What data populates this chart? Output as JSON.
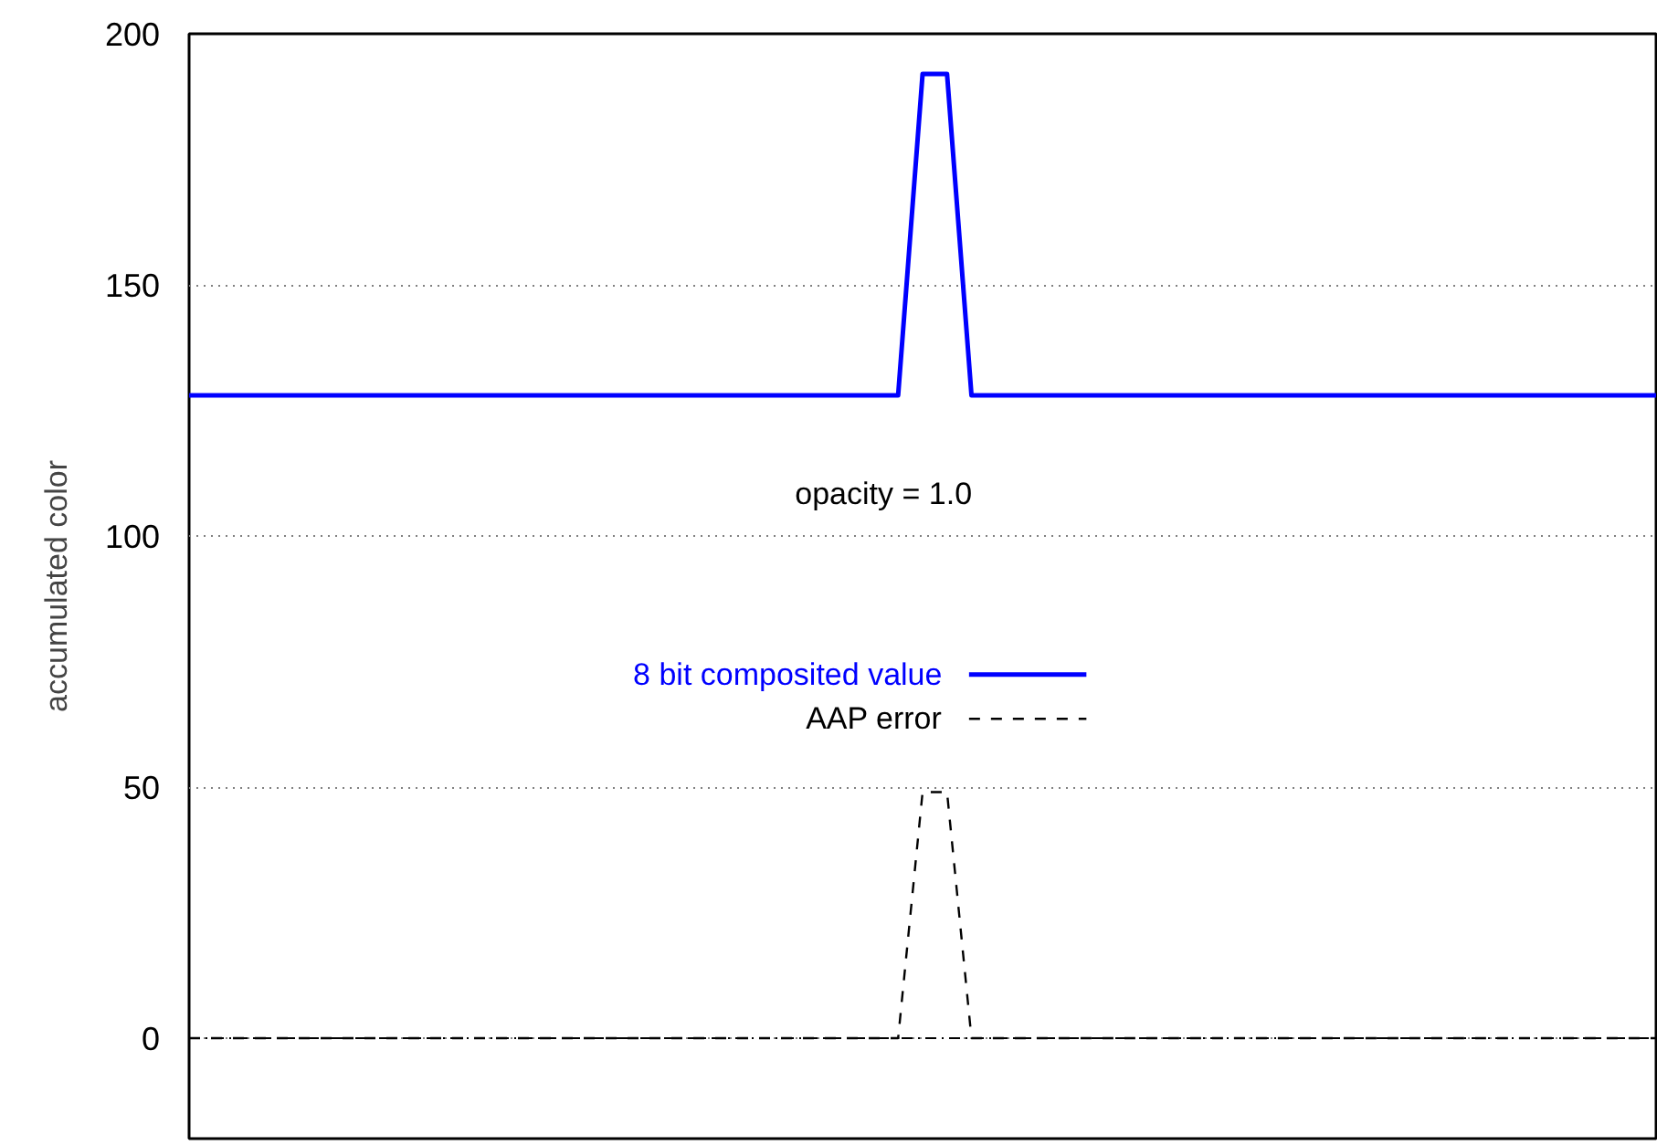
{
  "chart_data": {
    "type": "line",
    "ylabel": "accumulated color",
    "annotations": [
      "opacity = 1.0"
    ],
    "categories": [
      null,
      null,
      null,
      null,
      null,
      null,
      null,
      null,
      null,
      null,
      null,
      null,
      null,
      null,
      null,
      null,
      null,
      null,
      null,
      null,
      null,
      null,
      null,
      null,
      null,
      null,
      null,
      null,
      null,
      null,
      null,
      null,
      null,
      null,
      null,
      null,
      null,
      null,
      null,
      null,
      null,
      null,
      null,
      null,
      null,
      null,
      null,
      null,
      null,
      null,
      null,
      null,
      null,
      null,
      null,
      null,
      null,
      null,
      null,
      null,
      null
    ],
    "series": [
      {
        "name": "8 bit composited value",
        "color": "#0000ff",
        "line_style": "solid",
        "values": [
          128,
          128,
          128,
          128,
          128,
          128,
          128,
          128,
          128,
          128,
          128,
          128,
          128,
          128,
          128,
          128,
          128,
          128,
          128,
          128,
          128,
          128,
          128,
          128,
          128,
          128,
          128,
          128,
          128,
          128,
          192,
          192,
          128,
          128,
          128,
          128,
          128,
          128,
          128,
          128,
          128,
          128,
          128,
          128,
          128,
          128,
          128,
          128,
          128,
          128,
          128,
          128,
          128,
          128,
          128,
          128,
          128,
          128,
          128,
          128,
          128
        ]
      },
      {
        "name": "AAP error",
        "color": "#000000",
        "line_style": "dashed",
        "values": [
          0,
          0,
          0,
          0,
          0,
          0,
          0,
          0,
          0,
          0,
          0,
          0,
          0,
          0,
          0,
          0,
          0,
          0,
          0,
          0,
          0,
          0,
          0,
          0,
          0,
          0,
          0,
          0,
          0,
          0,
          49,
          49,
          0,
          0,
          0,
          0,
          0,
          0,
          0,
          0,
          0,
          0,
          0,
          0,
          0,
          0,
          0,
          0,
          0,
          0,
          0,
          0,
          0,
          0,
          0,
          0,
          0,
          0,
          0,
          0,
          0
        ]
      }
    ],
    "ylim": [
      -20,
      200
    ],
    "yticks": [
      0,
      50,
      100,
      150,
      200
    ],
    "ref_lines": [
      {
        "axis": "y",
        "value": 0,
        "label": null,
        "color": "#000000",
        "line_style": "dashdot"
      }
    ],
    "grid": "y",
    "legend": "center",
    "tick_labels": "y"
  }
}
